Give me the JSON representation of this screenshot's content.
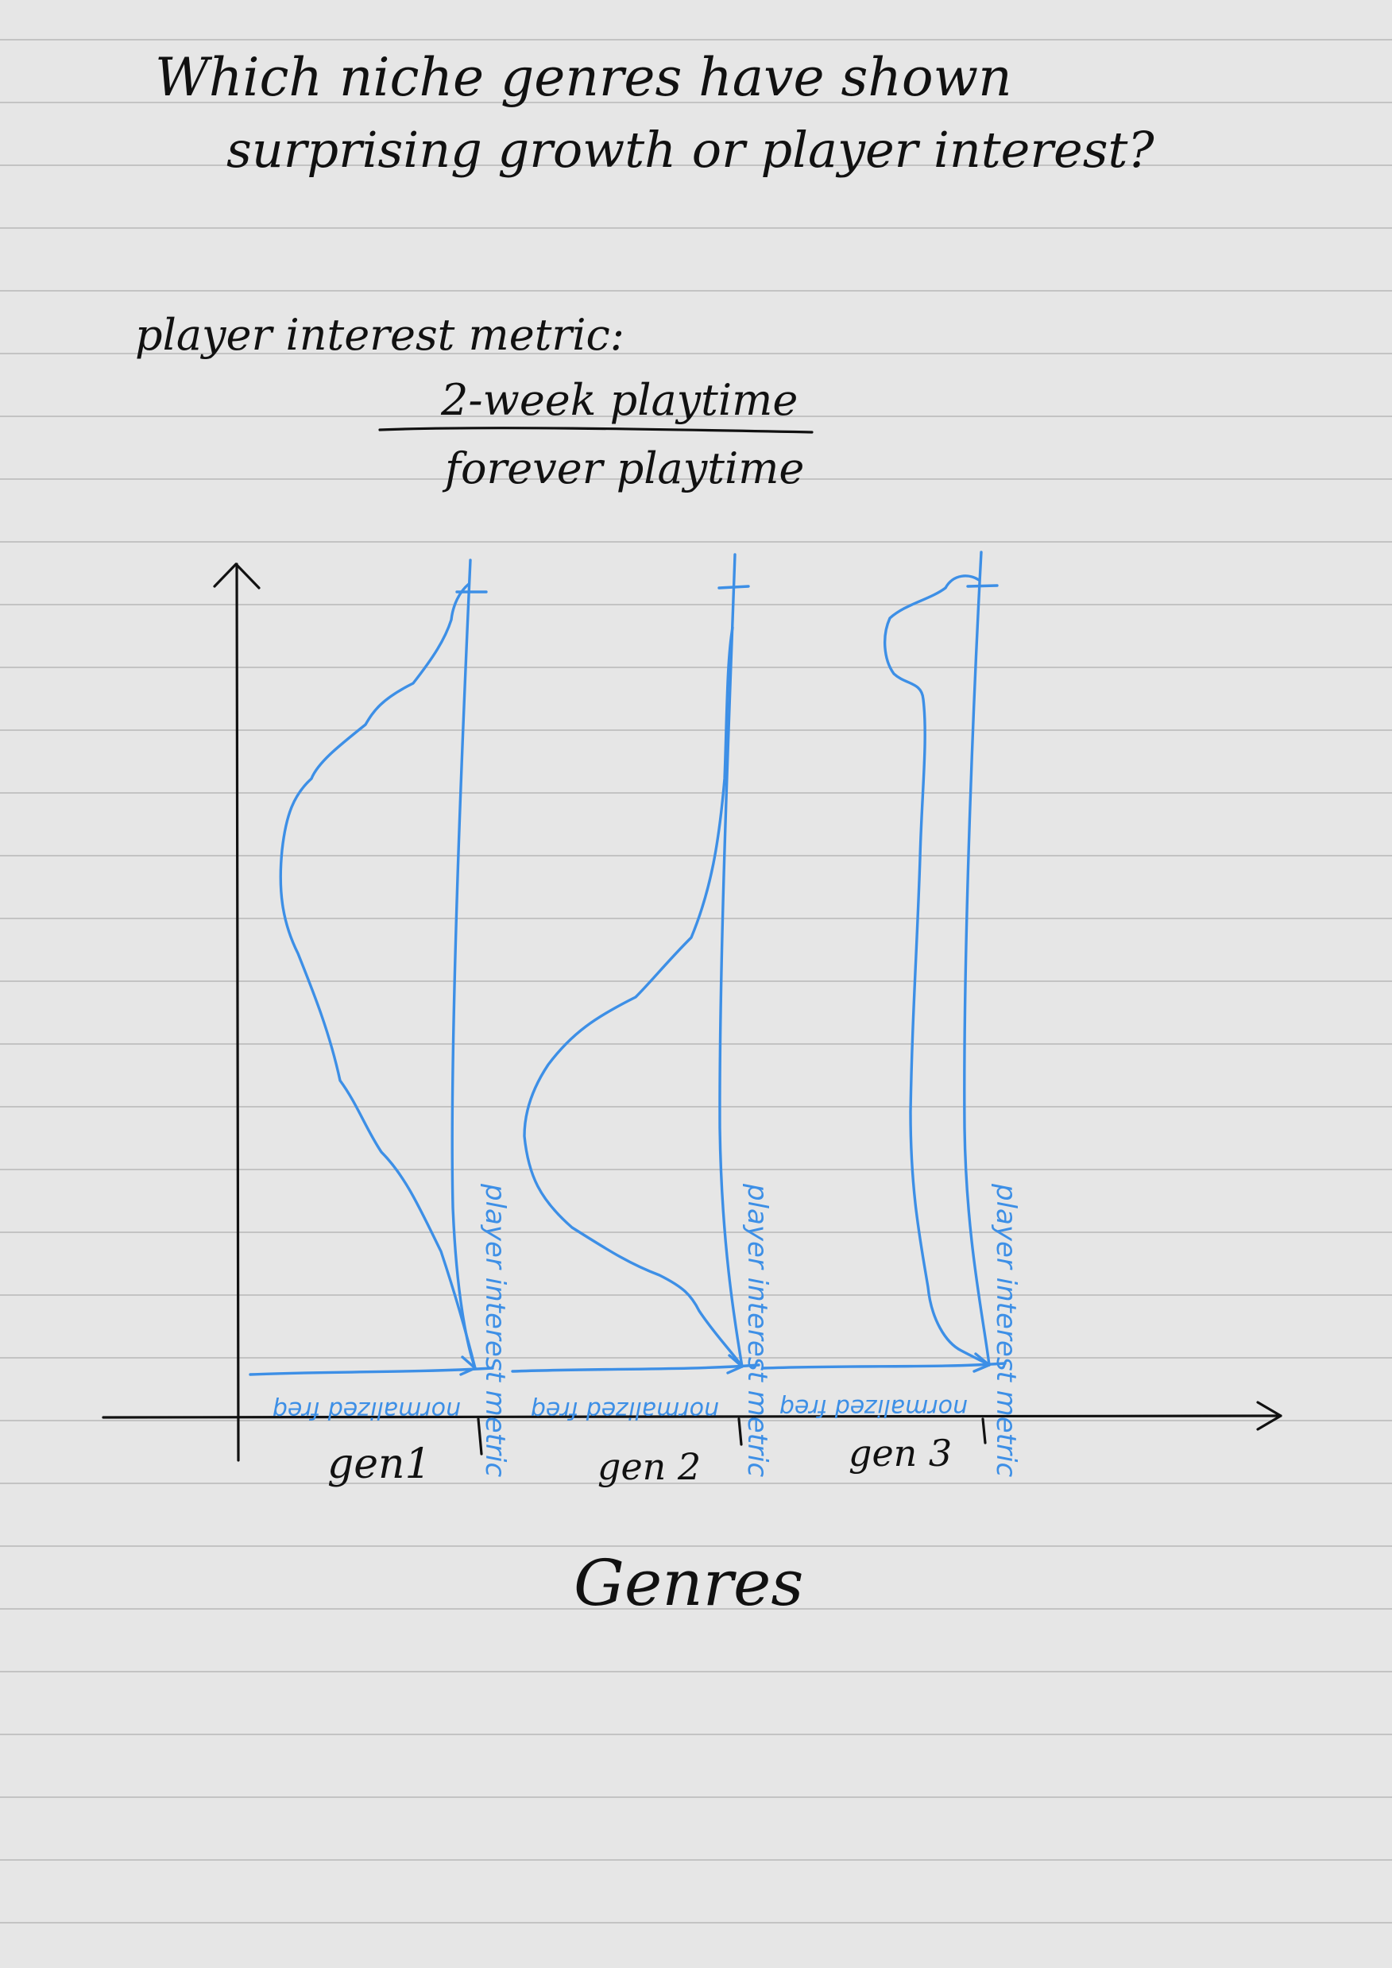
{
  "question": {
    "line1": "Which niche genres have shown",
    "line2": "surprising growth or player interest?"
  },
  "metric": {
    "label": "player interest metric:",
    "numerator": "2-week playtime",
    "denominator": "forever playtime"
  },
  "axis": {
    "xlabel": "Genres"
  },
  "genres": [
    {
      "label": "gen1",
      "value_axis_label": "player interest metric",
      "density_axis_label": "normalized freq"
    },
    {
      "label": "gen 2",
      "value_axis_label": "player interest metric",
      "density_axis_label": "normalized freq"
    },
    {
      "label": "gen 3",
      "value_axis_label": "player interest metric",
      "density_axis_label": "normalized freq"
    }
  ],
  "colors": {
    "ink": "#111111",
    "blue_ink": "#3d8fe6",
    "paper": "#e6e6e6",
    "rules": "#c3c3c3"
  }
}
